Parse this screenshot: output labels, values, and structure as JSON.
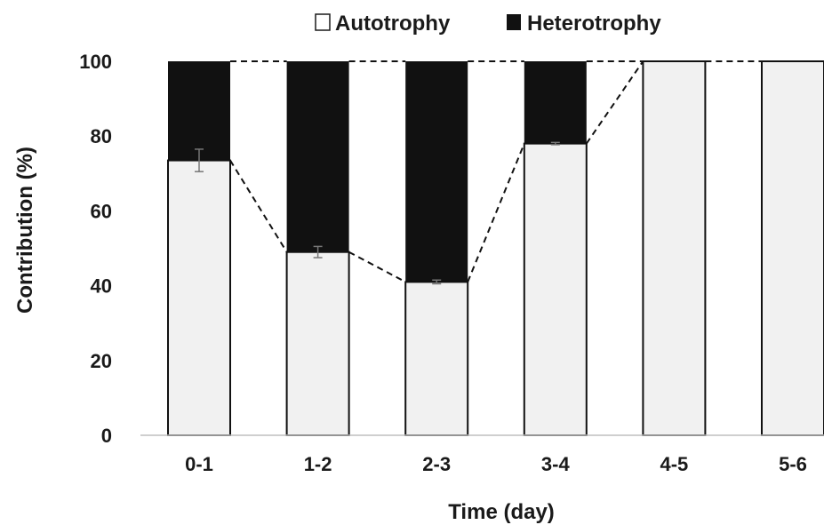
{
  "chart_data": {
    "type": "bar",
    "stacked": true,
    "categories": [
      "0-1",
      "1-2",
      "2-3",
      "3-4",
      "4-5",
      "5-6"
    ],
    "series": [
      {
        "name": "Autotrophy",
        "values": [
          73.5,
          49,
          41,
          78,
          100,
          100
        ],
        "error": [
          3,
          1.5,
          0.5,
          0.3,
          0,
          0
        ],
        "color": "#f1f1f1"
      },
      {
        "name": "Heterotrophy",
        "values": [
          26.5,
          51,
          59,
          22,
          0,
          0
        ],
        "color": "#111111"
      }
    ],
    "xlabel": "Time (day)",
    "ylabel": "Contribution  (%)",
    "ylim": [
      0,
      100
    ],
    "yticks": [
      0,
      20,
      40,
      60,
      80,
      100
    ],
    "legend": "top-center",
    "grid": false,
    "trend_lines": "dashed lines join the autotrophy tops and the 100% totals"
  }
}
